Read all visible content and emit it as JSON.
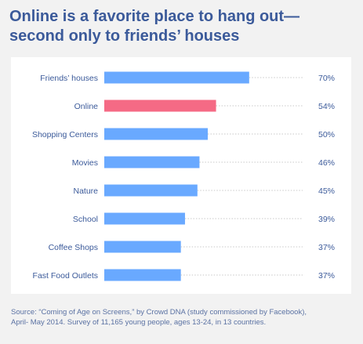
{
  "title": {
    "line1": "Online is a favorite place to hang out—",
    "line2": "second only to friends’ houses"
  },
  "source": {
    "line1": "Source: “Coming of Age on Screens,” by Crowd DNA (study commissioned by Facebook),",
    "line2": "April- May 2014. Survey of 11,165 young people, ages 13-24, in 13 countries."
  },
  "colors": {
    "bar": "#69a9ff",
    "highlight": "#f56a85",
    "label": "#3b5a9a",
    "leader": "#c8c8c8",
    "title": "#3b5a9a"
  },
  "chart_data": {
    "type": "bar",
    "orientation": "horizontal",
    "categories": [
      "Friends’ houses",
      "Online",
      "Shopping Centers",
      "Movies",
      "Nature",
      "School",
      "Coffee Shops",
      "Fast Food Outlets"
    ],
    "values": [
      70,
      54,
      50,
      46,
      45,
      39,
      37,
      37
    ],
    "value_labels": [
      "70%",
      "54%",
      "50%",
      "46%",
      "45%",
      "39%",
      "37%",
      "37%"
    ],
    "highlight_category": "Online",
    "unit": "%",
    "xlim": [
      0,
      100
    ],
    "grid": false,
    "legend": "none"
  }
}
